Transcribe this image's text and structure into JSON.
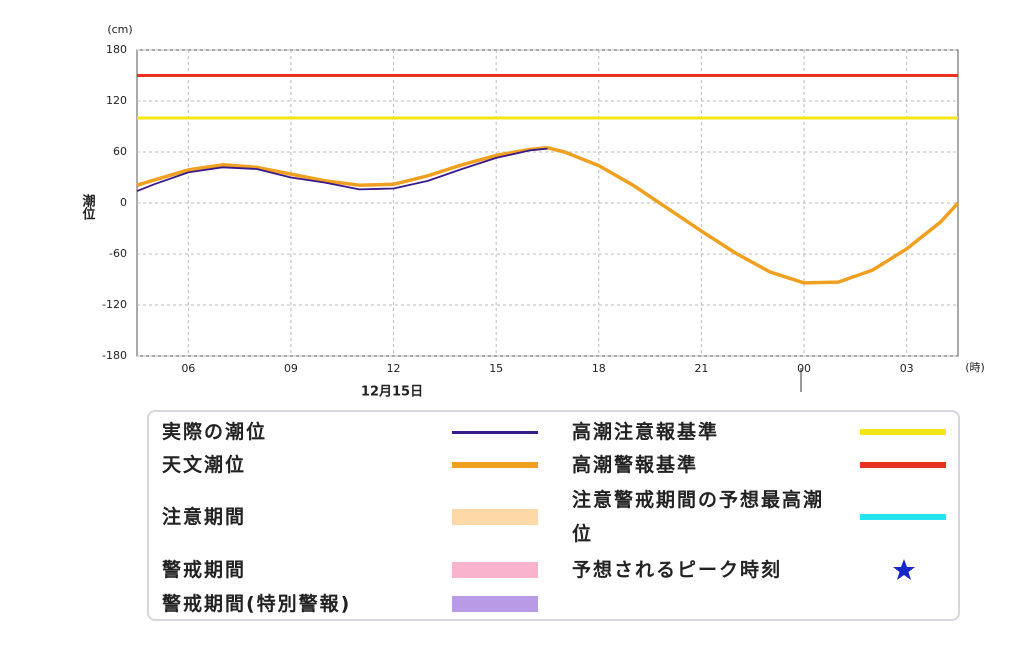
{
  "chart_data": {
    "type": "line",
    "y_label": "潮位",
    "y_unit": "(cm)",
    "x_unit": "(時)",
    "date_annotation": "12月15日",
    "x": [
      4.5,
      5,
      6,
      7,
      8,
      9,
      10,
      11,
      12,
      13,
      14,
      15,
      16,
      16.5,
      17,
      18,
      19,
      20,
      21,
      22,
      23,
      24,
      25,
      26,
      27,
      28,
      28.5
    ],
    "xlim": [
      4.5,
      28.5
    ],
    "xticks": [
      {
        "value": 6,
        "label": "06"
      },
      {
        "value": 9,
        "label": "09"
      },
      12,
      15,
      18,
      21,
      {
        "value": 24,
        "label": "00"
      },
      {
        "value": 27,
        "label": "03"
      }
    ],
    "ylim": [
      -180,
      180
    ],
    "yticks": [
      -180,
      -120,
      -60,
      0,
      60,
      120,
      180
    ],
    "grid": true,
    "series": [
      {
        "name": "天文潮位",
        "color": "#f0a020",
        "values": [
          21,
          27,
          39,
          45,
          42,
          34,
          26,
          21,
          22,
          32,
          45,
          56,
          63,
          65,
          60,
          44,
          21,
          -6,
          -33,
          -59,
          -81,
          -94,
          -93,
          -79,
          -54,
          -22,
          0
        ]
      },
      {
        "name": "実際の潮位",
        "color": "#3a1a8a",
        "values": [
          14,
          22,
          36,
          42,
          40,
          30,
          24,
          16,
          17,
          26,
          40,
          53,
          62,
          64,
          null,
          null,
          null,
          null,
          null,
          null,
          null,
          null,
          null,
          null,
          null,
          null,
          null
        ]
      }
    ],
    "reference_lines": [
      {
        "name": "高潮注意報基準",
        "value": 100,
        "color": "#f2e51a"
      },
      {
        "name": "高潮警報基準",
        "value": 150,
        "color": "#e8321f"
      }
    ],
    "legend_extra": [
      {
        "name": "注意期間",
        "color": "#fdd9a8"
      },
      {
        "name": "警戒期間",
        "color": "#f9b3cc"
      },
      {
        "name": "警戒期間(特別警報)",
        "color": "#b89ae6"
      },
      {
        "name": "注意警戒期間の予想最高潮位",
        "color": "#22e5f0"
      },
      {
        "name": "予想されるピーク時刻",
        "color": "#1428c8"
      }
    ]
  }
}
